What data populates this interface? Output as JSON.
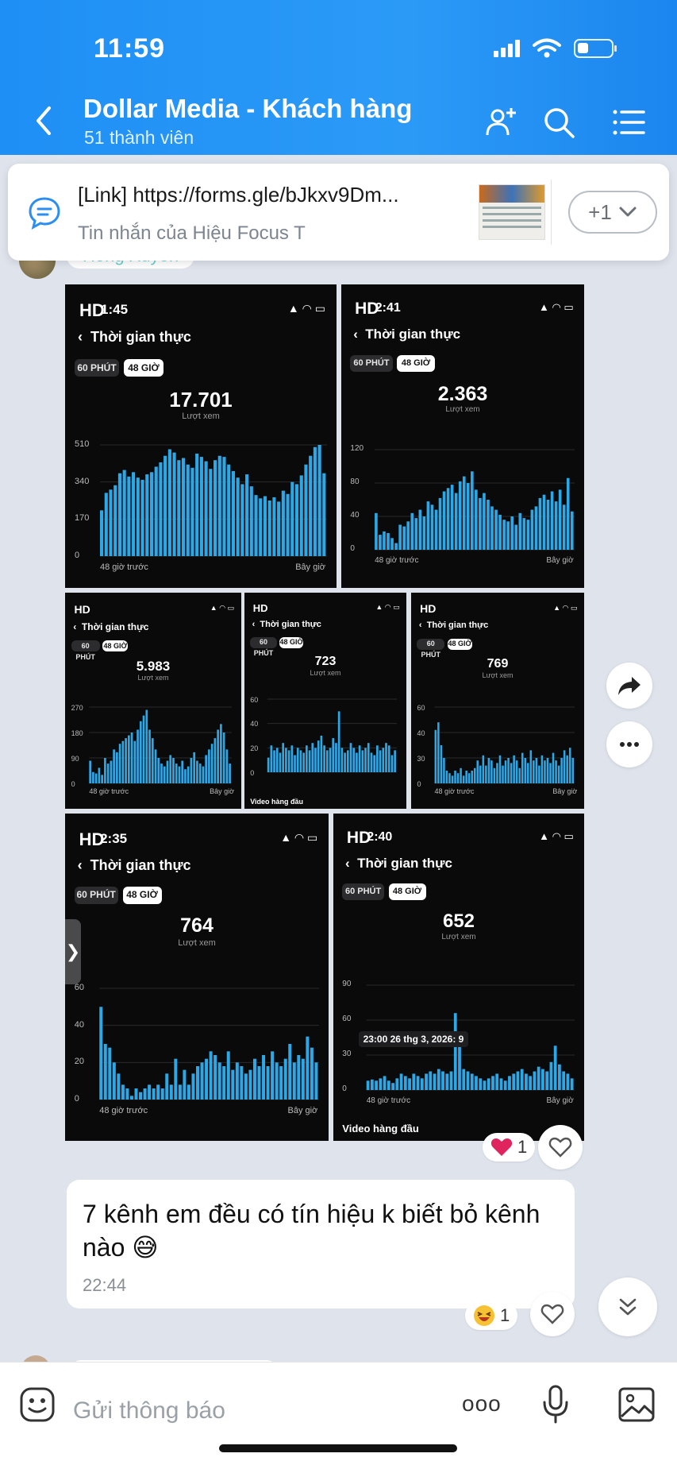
{
  "status_bar": {
    "time": "11:59"
  },
  "header": {
    "title": "Dollar Media - Khách hàng",
    "subtitle": "51 thành viên"
  },
  "pinned": {
    "text": "[Link] https://forms.gle/bJkxv9Dm...",
    "sender": "Tin nhắn của Hiệu Focus T",
    "more_label": "+1"
  },
  "sender": {
    "name": "Hồng Xuyến"
  },
  "screenshots": [
    {
      "badge": "HD",
      "time": "1:45",
      "back_title": "Thời gian thực",
      "chip_60": "60 PHÚT",
      "chip_48": "48 GIỜ",
      "total": "17.701",
      "total_label": "Lượt xem",
      "y_ticks": [
        "510",
        "340",
        "170",
        "0"
      ],
      "x_start": "48 giờ trước",
      "x_end": "Bây giờ",
      "chart_data": {
        "type": "bar",
        "ylim": [
          0,
          510
        ],
        "values": [
          210,
          290,
          305,
          325,
          380,
          395,
          365,
          385,
          360,
          350,
          375,
          385,
          410,
          430,
          460,
          490,
          475,
          440,
          450,
          420,
          405,
          470,
          455,
          435,
          400,
          440,
          460,
          455,
          420,
          390,
          360,
          330,
          375,
          320,
          280,
          265,
          275,
          255,
          270,
          250,
          300,
          285,
          340,
          330,
          370,
          420,
          460,
          500,
          515,
          380
        ]
      }
    },
    {
      "badge": "HD",
      "time": "2:41",
      "back_title": "Thời gian thực",
      "chip_60": "60 PHÚT",
      "chip_48": "48 GIỜ",
      "total": "2.363",
      "total_label": "Lượt xem",
      "y_ticks": [
        "120",
        "80",
        "40",
        "0"
      ],
      "x_start": "48 giờ trước",
      "x_end": "Bây giờ",
      "chart_data": {
        "type": "bar",
        "ylim": [
          0,
          120
        ],
        "values": [
          44,
          18,
          22,
          20,
          14,
          8,
          30,
          28,
          34,
          44,
          38,
          48,
          40,
          58,
          54,
          48,
          62,
          70,
          74,
          78,
          68,
          82,
          88,
          80,
          94,
          72,
          62,
          68,
          60,
          52,
          48,
          42,
          36,
          34,
          40,
          30,
          44,
          38,
          36,
          48,
          52,
          62,
          66,
          60,
          70,
          58,
          72,
          54,
          86,
          46
        ]
      }
    },
    {
      "badge": "HD",
      "back_title": "Thời gian thực",
      "chip_60": "60 PHÚT",
      "chip_48": "48 GIỜ",
      "total": "5.983",
      "total_label": "Lượt xem",
      "y_ticks": [
        "270",
        "180",
        "90",
        "0"
      ],
      "x_start": "48 giờ trước",
      "x_end": "Bây giờ",
      "chart_data": {
        "type": "bar",
        "ylim": [
          0,
          270
        ],
        "values": [
          80,
          40,
          35,
          55,
          30,
          90,
          70,
          80,
          120,
          110,
          140,
          150,
          160,
          170,
          180,
          150,
          190,
          220,
          240,
          260,
          190,
          160,
          120,
          90,
          70,
          60,
          80,
          100,
          90,
          70,
          60,
          80,
          50,
          60,
          90,
          110,
          80,
          70,
          60,
          100,
          120,
          140,
          160,
          190,
          210,
          180,
          120,
          70
        ]
      }
    },
    {
      "badge": "HD",
      "back_title": "Thời gian thực",
      "chip_60": "60 PHÚT",
      "chip_48": "48 GIỜ",
      "total": "723",
      "total_label": "Lượt xem",
      "y_ticks": [
        "60",
        "40",
        "20",
        "0"
      ],
      "x_start": "",
      "x_end": "",
      "footer": "Video hàng đầu",
      "chart_data": {
        "type": "bar",
        "ylim": [
          0,
          60
        ],
        "values": [
          12,
          22,
          18,
          20,
          16,
          24,
          20,
          18,
          22,
          14,
          20,
          18,
          16,
          22,
          18,
          24,
          20,
          26,
          30,
          22,
          18,
          20,
          28,
          24,
          50,
          20,
          16,
          18,
          24,
          20,
          16,
          22,
          18,
          20,
          24,
          16,
          14,
          22,
          18,
          20,
          24,
          22,
          14,
          18
        ]
      }
    },
    {
      "badge": "HD",
      "back_title": "Thời gian thực",
      "chip_60": "60 PHÚT",
      "chip_48": "48 GIỜ",
      "total": "769",
      "total_label": "Lượt xem",
      "y_ticks": [
        "60",
        "40",
        "30",
        "0"
      ],
      "x_start": "48 giờ trước",
      "x_end": "Bây giờ",
      "chart_data": {
        "type": "bar",
        "ylim": [
          0,
          60
        ],
        "values": [
          42,
          48,
          30,
          20,
          10,
          8,
          6,
          10,
          8,
          12,
          6,
          10,
          8,
          10,
          12,
          18,
          14,
          22,
          14,
          20,
          18,
          12,
          16,
          22,
          14,
          18,
          20,
          16,
          22,
          18,
          12,
          24,
          20,
          16,
          26,
          18,
          20,
          14,
          22,
          18,
          20,
          16,
          24,
          18,
          14,
          20,
          26,
          22,
          28,
          20
        ]
      }
    },
    {
      "badge": "HD",
      "time": "2:35",
      "back_title": "Thời gian thực",
      "chip_60": "60 PHÚT",
      "chip_48": "48 GIỜ",
      "total": "764",
      "total_label": "Lượt xem",
      "y_ticks": [
        "60",
        "40",
        "20",
        "0"
      ],
      "x_start": "48 giờ trước",
      "x_end": "Bây giờ",
      "chart_data": {
        "type": "bar",
        "ylim": [
          0,
          60
        ],
        "values": [
          50,
          30,
          28,
          20,
          14,
          8,
          6,
          2,
          6,
          4,
          6,
          8,
          6,
          8,
          6,
          14,
          8,
          22,
          8,
          16,
          8,
          14,
          18,
          20,
          22,
          26,
          24,
          20,
          18,
          26,
          16,
          20,
          18,
          14,
          16,
          22,
          18,
          24,
          18,
          26,
          20,
          18,
          22,
          30,
          20,
          24,
          22,
          34,
          28,
          20
        ]
      }
    },
    {
      "badge": "HD",
      "time": "2:40",
      "back_title": "Thời gian thực",
      "chip_60": "60 PHÚT",
      "chip_48": "48 GIỜ",
      "total": "652",
      "total_label": "Lượt xem",
      "y_ticks": [
        "90",
        "60",
        "30",
        "0"
      ],
      "x_start": "48 giờ trước",
      "x_end": "Bây giờ",
      "tooltip": "23:00 26 thg 3, 2026: 9",
      "footer": "Video hàng đầu",
      "chart_data": {
        "type": "bar",
        "ylim": [
          0,
          90
        ],
        "values": [
          8,
          9,
          8,
          10,
          12,
          8,
          6,
          10,
          14,
          12,
          10,
          14,
          12,
          10,
          14,
          16,
          14,
          18,
          16,
          14,
          16,
          66,
          40,
          18,
          16,
          14,
          12,
          10,
          8,
          10,
          12,
          14,
          10,
          8,
          12,
          14,
          16,
          18,
          14,
          12,
          16,
          20,
          18,
          16,
          24,
          38,
          22,
          16,
          14,
          10
        ]
      }
    }
  ],
  "reactions": {
    "screens_heart_count": "1",
    "message_laugh_count": "1"
  },
  "message": {
    "text": "7 kênh em đều có tín hiệu k biết bỏ kênh nào 😅",
    "time": "22:44"
  },
  "input": {
    "placeholder": "Gửi thông báo",
    "more_label": "ooo"
  },
  "colors": {
    "header": "#1e8ff5",
    "bar": "#2ca8e6",
    "reaction_heart": "#e0245e"
  }
}
